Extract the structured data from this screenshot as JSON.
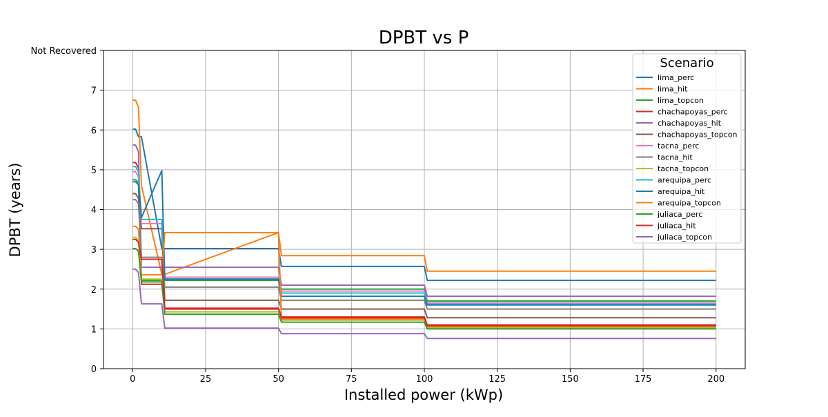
{
  "chart_data": {
    "type": "line",
    "title": "DPBT vs P",
    "xlabel": "Installed power (kWp)",
    "ylabel": "DPBT (years)",
    "xlim": [
      -10,
      210
    ],
    "ylim": [
      0,
      8
    ],
    "xticks": [
      0,
      25,
      50,
      75,
      100,
      125,
      150,
      175,
      200
    ],
    "yticks": [
      0,
      1,
      2,
      3,
      4,
      5,
      6,
      7,
      8
    ],
    "ytick_labels": [
      "0",
      "1",
      "2",
      "3",
      "4",
      "5",
      "6",
      "7",
      "Not Recovered"
    ],
    "grid": true,
    "legend": {
      "title": "Scenario",
      "placement": "upper right"
    },
    "x": [
      0,
      1,
      2,
      3,
      10,
      11,
      50,
      51,
      100,
      101,
      200
    ],
    "series": [
      {
        "name": "lima_perc",
        "color": "#1f77b4",
        "values": [
          6.02,
          6.02,
          5.83,
          5.83,
          3.02,
          3.02,
          3.02,
          2.57,
          2.57,
          2.22,
          2.22
        ]
      },
      {
        "name": "lima_hit",
        "color": "#ff7f0e",
        "values": [
          6.75,
          6.75,
          6.57,
          4.6,
          2.37,
          2.37,
          3.42,
          2.84,
          2.84,
          2.45,
          2.45
        ]
      },
      {
        "name": "lima_topcon",
        "color": "#2ca02c",
        "values": [
          4.75,
          4.75,
          4.68,
          2.22,
          2.22,
          2.22,
          2.22,
          2.0,
          2.0,
          1.7,
          1.7
        ]
      },
      {
        "name": "chachapoyas_perc",
        "color": "#d62728",
        "values": [
          5.18,
          5.18,
          5.05,
          2.12,
          2.12,
          1.5,
          1.5,
          1.3,
          1.3,
          1.1,
          1.1
        ]
      },
      {
        "name": "chachapoyas_hit",
        "color": "#9467bd",
        "values": [
          5.62,
          5.62,
          5.45,
          2.55,
          2.55,
          2.55,
          2.55,
          2.1,
          2.1,
          1.82,
          1.82
        ]
      },
      {
        "name": "chachapoyas_topcon",
        "color": "#8c564b",
        "values": [
          4.4,
          4.4,
          4.28,
          3.52,
          3.52,
          1.72,
          1.72,
          1.5,
          1.5,
          1.28,
          1.28
        ]
      },
      {
        "name": "tacna_perc",
        "color": "#e377c2",
        "values": [
          4.95,
          4.95,
          4.82,
          3.65,
          3.65,
          2.3,
          2.3,
          1.95,
          1.95,
          1.65,
          1.65
        ]
      },
      {
        "name": "tacna_hit",
        "color": "#7f7f7f",
        "values": [
          4.25,
          4.25,
          4.15,
          2.8,
          2.8,
          2.05,
          2.05,
          1.72,
          1.72,
          1.5,
          1.5
        ]
      },
      {
        "name": "tacna_topcon",
        "color": "#bcbd22",
        "values": [
          3.3,
          3.3,
          3.22,
          2.25,
          2.25,
          1.43,
          1.43,
          1.22,
          1.22,
          1.03,
          1.03
        ]
      },
      {
        "name": "arequipa_perc",
        "color": "#17becf",
        "values": [
          5.08,
          5.08,
          4.95,
          3.75,
          3.75,
          2.25,
          2.25,
          1.9,
          1.9,
          1.62,
          1.62
        ]
      },
      {
        "name": "arequipa_hit",
        "color": "#1f77b4",
        "values": [
          4.7,
          4.7,
          4.62,
          3.8,
          4.98,
          2.25,
          2.25,
          1.82,
          1.82,
          1.6,
          1.6
        ]
      },
      {
        "name": "arequipa_topcon",
        "color": "#ff7f0e",
        "values": [
          3.58,
          3.58,
          3.5,
          2.36,
          2.36,
          3.42,
          3.42,
          1.25,
          1.25,
          1.06,
          1.06
        ]
      },
      {
        "name": "juliaca_perc",
        "color": "#2ca02c",
        "values": [
          3.02,
          3.02,
          2.95,
          2.18,
          2.18,
          1.37,
          1.37,
          1.17,
          1.17,
          1.0,
          1.0
        ]
      },
      {
        "name": "juliaca_hit",
        "color": "#d62728",
        "values": [
          3.25,
          3.25,
          3.18,
          2.75,
          2.75,
          1.52,
          1.52,
          1.28,
          1.28,
          1.08,
          1.08
        ]
      },
      {
        "name": "juliaca_topcon",
        "color": "#9467bd",
        "values": [
          2.5,
          2.5,
          2.42,
          1.63,
          1.63,
          1.02,
          1.02,
          0.88,
          0.88,
          0.76,
          0.76
        ]
      }
    ]
  }
}
